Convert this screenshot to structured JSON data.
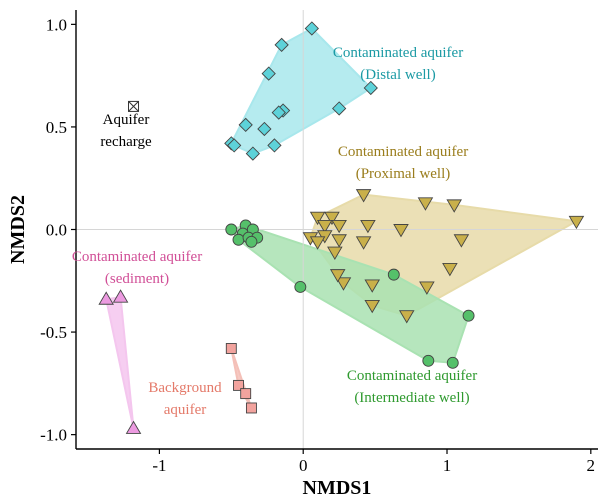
{
  "chart_data": {
    "type": "scatter",
    "title": "",
    "xlabel": "NMDS1",
    "ylabel": "NMDS2",
    "xlim": [
      -1.58,
      2.05
    ],
    "ylim": [
      -1.07,
      1.07
    ],
    "xticks": [
      -1,
      0,
      1,
      2
    ],
    "yticks": [
      -1.0,
      -0.5,
      0.0,
      0.5,
      1.0
    ],
    "xtick_labels": [
      "-1",
      "0",
      "1",
      "2"
    ],
    "ytick_labels": [
      "-1.0",
      "-0.5",
      "0.0",
      "0.5",
      "1.0"
    ],
    "reference_lines": {
      "x": 0,
      "y": 0
    },
    "grid": false,
    "legend": "none",
    "groups": [
      {
        "name": "",
        "annotation": [
          "Contaminated aquifer",
          "(Distal well)"
        ],
        "annotation_color": "#1b9aa4",
        "marker": "diamond",
        "fill": "#5dd2d9",
        "hull_color": "#a8e7ec",
        "points": [
          [
            0.06,
            0.98
          ],
          [
            -0.15,
            0.9
          ],
          [
            -0.24,
            0.76
          ],
          [
            0.47,
            0.69
          ],
          [
            -0.14,
            0.58
          ],
          [
            -0.17,
            0.57
          ],
          [
            -0.4,
            0.51
          ],
          [
            -0.27,
            0.49
          ],
          [
            -0.5,
            0.42
          ],
          [
            -0.2,
            0.41
          ],
          [
            -0.35,
            0.37
          ],
          [
            -0.48,
            0.41
          ],
          [
            0.25,
            0.59
          ]
        ]
      },
      {
        "name": "",
        "annotation": [
          "Contaminated aquifer",
          "(Proximal well)"
        ],
        "annotation_color": "#9a7d1c",
        "marker": "triangle-down",
        "fill": "#c9b04a",
        "hull_color": "#e7dba9",
        "points": [
          [
            0.42,
            0.17
          ],
          [
            0.85,
            0.13
          ],
          [
            1.05,
            0.12
          ],
          [
            1.9,
            0.04
          ],
          [
            0.1,
            0.06
          ],
          [
            0.2,
            0.06
          ],
          [
            0.15,
            0.02
          ],
          [
            0.25,
            0.02
          ],
          [
            0.45,
            0.02
          ],
          [
            0.68,
            0.0
          ],
          [
            0.05,
            -0.04
          ],
          [
            0.15,
            -0.03
          ],
          [
            0.1,
            -0.06
          ],
          [
            0.25,
            -0.05
          ],
          [
            0.42,
            -0.06
          ],
          [
            0.22,
            -0.11
          ],
          [
            1.1,
            -0.05
          ],
          [
            0.28,
            -0.26
          ],
          [
            0.24,
            -0.22
          ],
          [
            0.48,
            -0.27
          ],
          [
            0.86,
            -0.28
          ],
          [
            1.02,
            -0.19
          ],
          [
            0.48,
            -0.37
          ],
          [
            0.72,
            -0.42
          ]
        ]
      },
      {
        "name": "",
        "annotation": [
          "Contaminated aquifer",
          "(Intermediate well)"
        ],
        "annotation_color": "#2f9a2f",
        "marker": "circle",
        "fill": "#55c06a",
        "hull_color": "#a9e2b2",
        "points": [
          [
            -0.5,
            0.0
          ],
          [
            -0.4,
            0.02
          ],
          [
            -0.42,
            -0.02
          ],
          [
            -0.35,
            0.0
          ],
          [
            -0.45,
            -0.05
          ],
          [
            -0.38,
            -0.04
          ],
          [
            -0.32,
            -0.04
          ],
          [
            -0.36,
            -0.06
          ],
          [
            -0.02,
            -0.28
          ],
          [
            0.63,
            -0.22
          ],
          [
            1.15,
            -0.42
          ],
          [
            0.87,
            -0.64
          ],
          [
            1.04,
            -0.65
          ]
        ]
      },
      {
        "name": "",
        "annotation": [
          "Contaminated aquifer",
          "(sediment)"
        ],
        "annotation_color": "#d14f97",
        "marker": "triangle-up",
        "fill": "#ec9ae0",
        "hull_color": "#f4c6ee",
        "points": [
          [
            -1.37,
            -0.34
          ],
          [
            -1.27,
            -0.33
          ],
          [
            -1.18,
            -0.97
          ]
        ]
      },
      {
        "name": "",
        "annotation": [
          "Background",
          "aquifer"
        ],
        "annotation_color": "#e47a6a",
        "marker": "square",
        "fill": "#f2a39e",
        "hull_color": "#f4c0b8",
        "points": [
          [
            -0.5,
            -0.58
          ],
          [
            -0.45,
            -0.76
          ],
          [
            -0.4,
            -0.8
          ],
          [
            -0.36,
            -0.87
          ]
        ]
      },
      {
        "name": "",
        "annotation": [
          "Aquifer",
          "recharge"
        ],
        "annotation_color": "#000000",
        "marker": "square-x",
        "fill": "#ffffff",
        "hull_color": "",
        "points": [
          [
            -1.18,
            0.6
          ]
        ]
      }
    ]
  }
}
